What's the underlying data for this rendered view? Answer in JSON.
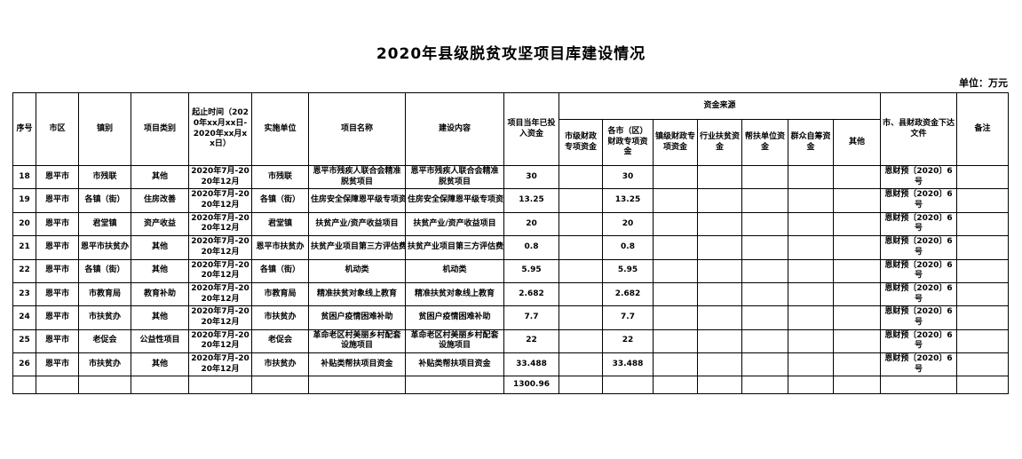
{
  "title": "2020年县级脱贫攻坚项目库建设情况",
  "unit_note": "单位：万元",
  "table": {
    "headers": {
      "no": "序号",
      "city": "市区",
      "town": "镇别",
      "category": "项目类别",
      "period": "起止时间（2020年xx月xx日-2020年xx月xx日）",
      "unit": "实施单位",
      "name": "项目名称",
      "content": "建设内容",
      "invested": "项目当年已投入资金",
      "funding_group": "资金来源",
      "funding_cols": [
        "市级财政专项资金",
        "各市（区）财政专项资金",
        "镇级财政专项资金",
        "行业扶贫资金",
        "帮扶单位资金",
        "群众自筹资金",
        "其他"
      ],
      "doc": "市、县财政资金下达文件",
      "remark": "备注"
    },
    "rows": [
      {
        "no": "18",
        "city": "恩平市",
        "town": "市残联",
        "category": "其他",
        "period": "2020年7月-2020年12月",
        "unit": "市残联",
        "name": "恩平市残疾人联合会精准脱贫项目",
        "content": "恩平市残疾人联合会精准脱贫项目",
        "invested": "30",
        "funding": [
          "",
          "30",
          "",
          "",
          "",
          "",
          ""
        ],
        "doc": "恩财预〔2020〕6号",
        "remark": "",
        "nowrap": false
      },
      {
        "no": "19",
        "city": "恩平市",
        "town": "各镇（街）",
        "category": "住房改善",
        "period": "2020年7月-2020年12月",
        "unit": "各镇（街）",
        "name": "住房安全保障恩平级专项资金",
        "content": "住房安全保障恩平级专项资金",
        "invested": "13.25",
        "funding": [
          "",
          "13.25",
          "",
          "",
          "",
          "",
          ""
        ],
        "doc": "恩财预〔2020〕6号",
        "remark": "",
        "nowrap": true
      },
      {
        "no": "20",
        "city": "恩平市",
        "town": "君堂镇",
        "category": "资产收益",
        "period": "2020年7月-2020年12月",
        "unit": "君堂镇",
        "name": "扶贫产业/资产收益项目",
        "content": "扶贫产业/资产收益项目",
        "invested": "20",
        "funding": [
          "",
          "20",
          "",
          "",
          "",
          "",
          ""
        ],
        "doc": "恩财预〔2020〕6号",
        "remark": "",
        "nowrap": false
      },
      {
        "no": "21",
        "city": "恩平市",
        "town": "恩平市扶贫办",
        "category": "其他",
        "period": "2020年7月-2020年12月",
        "unit": "恩平市扶贫办",
        "name": "扶贫产业项目第三方评估费用",
        "content": "扶贫产业项目第三方评估费用",
        "invested": "0.8",
        "funding": [
          "",
          "0.8",
          "",
          "",
          "",
          "",
          ""
        ],
        "doc": "恩财预〔2020〕6号",
        "remark": "",
        "nowrap": true
      },
      {
        "no": "22",
        "city": "恩平市",
        "town": "各镇（街）",
        "category": "其他",
        "period": "2020年7月-2020年12月",
        "unit": "各镇（街）",
        "name": "机动类",
        "content": "机动类",
        "invested": "5.95",
        "funding": [
          "",
          "5.95",
          "",
          "",
          "",
          "",
          ""
        ],
        "doc": "恩财预〔2020〕6号",
        "remark": "",
        "nowrap": false
      },
      {
        "no": "23",
        "city": "恩平市",
        "town": "市教育局",
        "category": "教育补助",
        "period": "2020年7月-2020年12月",
        "unit": "市教育局",
        "name": "精准扶贫对象线上教育",
        "content": "精准扶贫对象线上教育",
        "invested": "2.682",
        "funding": [
          "",
          "2.682",
          "",
          "",
          "",
          "",
          ""
        ],
        "doc": "恩财预〔2020〕6号",
        "remark": "",
        "nowrap": false
      },
      {
        "no": "24",
        "city": "恩平市",
        "town": "市扶贫办",
        "category": "其他",
        "period": "2020年7月-2020年12月",
        "unit": "市扶贫办",
        "name": "贫困户疫情困难补助",
        "content": "贫困户疫情困难补助",
        "invested": "7.7",
        "funding": [
          "",
          "7.7",
          "",
          "",
          "",
          "",
          ""
        ],
        "doc": "恩财预〔2020〕6号",
        "remark": "",
        "nowrap": false
      },
      {
        "no": "25",
        "city": "恩平市",
        "town": "老促会",
        "category": "公益性项目",
        "period": "2020年7月-2020年12月",
        "unit": "老促会",
        "name": "革命老区村美丽乡村配套设施项目",
        "content": "革命老区村美丽乡村配套设施项目",
        "invested": "22",
        "funding": [
          "",
          "22",
          "",
          "",
          "",
          "",
          ""
        ],
        "doc": "恩财预〔2020〕6号",
        "remark": "",
        "nowrap": false
      },
      {
        "no": "26",
        "city": "恩平市",
        "town": "市扶贫办",
        "category": "其他",
        "period": "2020年7月-2020年12月",
        "unit": "市扶贫办",
        "name": "补贴类帮扶项目资金",
        "content": "补贴类帮扶项目资金",
        "invested": "33.488",
        "funding": [
          "",
          "33.488",
          "",
          "",
          "",
          "",
          ""
        ],
        "doc": "恩财预〔2020〕6号",
        "remark": "",
        "nowrap": false
      }
    ],
    "total_row": {
      "invested_total": "1300.96"
    }
  }
}
